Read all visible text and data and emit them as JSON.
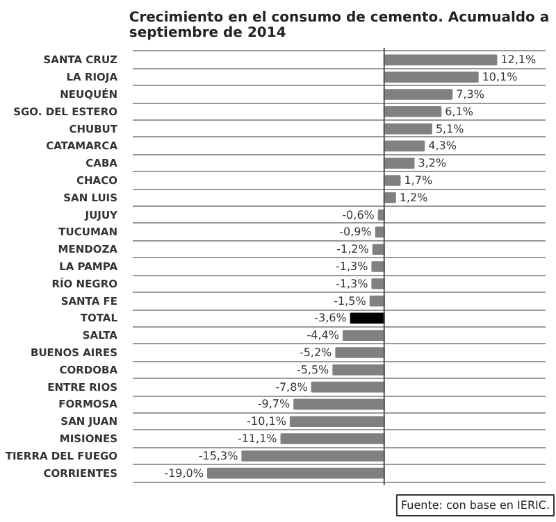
{
  "chart_data": {
    "type": "bar",
    "orientation": "horizontal",
    "title": "Crecimiento en el consumo de cemento. Acumualdo a septiembre de 2014",
    "categories": [
      "SANTA CRUZ",
      "LA RIOJA",
      "NEUQUÉN",
      "SGO. DEL ESTERO",
      "CHUBUT",
      "CATAMARCA",
      "CABA",
      "CHACO",
      "SAN LUIS",
      "JUJUY",
      "TUCUMAN",
      "MENDOZA",
      "LA PAMPA",
      "RÍO NEGRO",
      "SANTA FE",
      "TOTAL",
      "SALTA",
      "BUENOS AIRES",
      "CORDOBA",
      "ENTRE RIOS",
      "FORMOSA",
      "SAN JUAN",
      "MISIONES",
      "TIERRA DEL FUEGO",
      "CORRIENTES"
    ],
    "values": [
      12.1,
      10.1,
      7.3,
      6.1,
      5.1,
      4.3,
      3.2,
      1.7,
      1.2,
      -0.6,
      -0.9,
      -1.2,
      -1.3,
      -1.3,
      -1.5,
      -3.6,
      -4.4,
      -5.2,
      -5.5,
      -7.8,
      -9.7,
      -10.1,
      -11.1,
      -15.3,
      -19.0
    ],
    "value_labels": [
      "12,1%",
      "10,1%",
      "7,3%",
      "6,1%",
      "5,1%",
      "4,3%",
      "3,2%",
      "1,7%",
      "1,2%",
      "-0,6%",
      "-0,9%",
      "-1,2%",
      "-1,3%",
      "-1,3%",
      "-1,5%",
      "-3,6%",
      "-4,4%",
      "-5,2%",
      "-5,5%",
      "-7,8%",
      "-9,7%",
      "-10,1%",
      "-11,1%",
      "-15,3%",
      "-19,0%"
    ],
    "colors": [
      "#808080",
      "#808080",
      "#808080",
      "#808080",
      "#808080",
      "#808080",
      "#808080",
      "#808080",
      "#808080",
      "#808080",
      "#808080",
      "#808080",
      "#808080",
      "#808080",
      "#808080",
      "#000000",
      "#808080",
      "#808080",
      "#808080",
      "#808080",
      "#808080",
      "#808080",
      "#808080",
      "#808080",
      "#808080"
    ],
    "grid": "y",
    "annotations": [
      "Fuente: con base en IERIC."
    ]
  }
}
